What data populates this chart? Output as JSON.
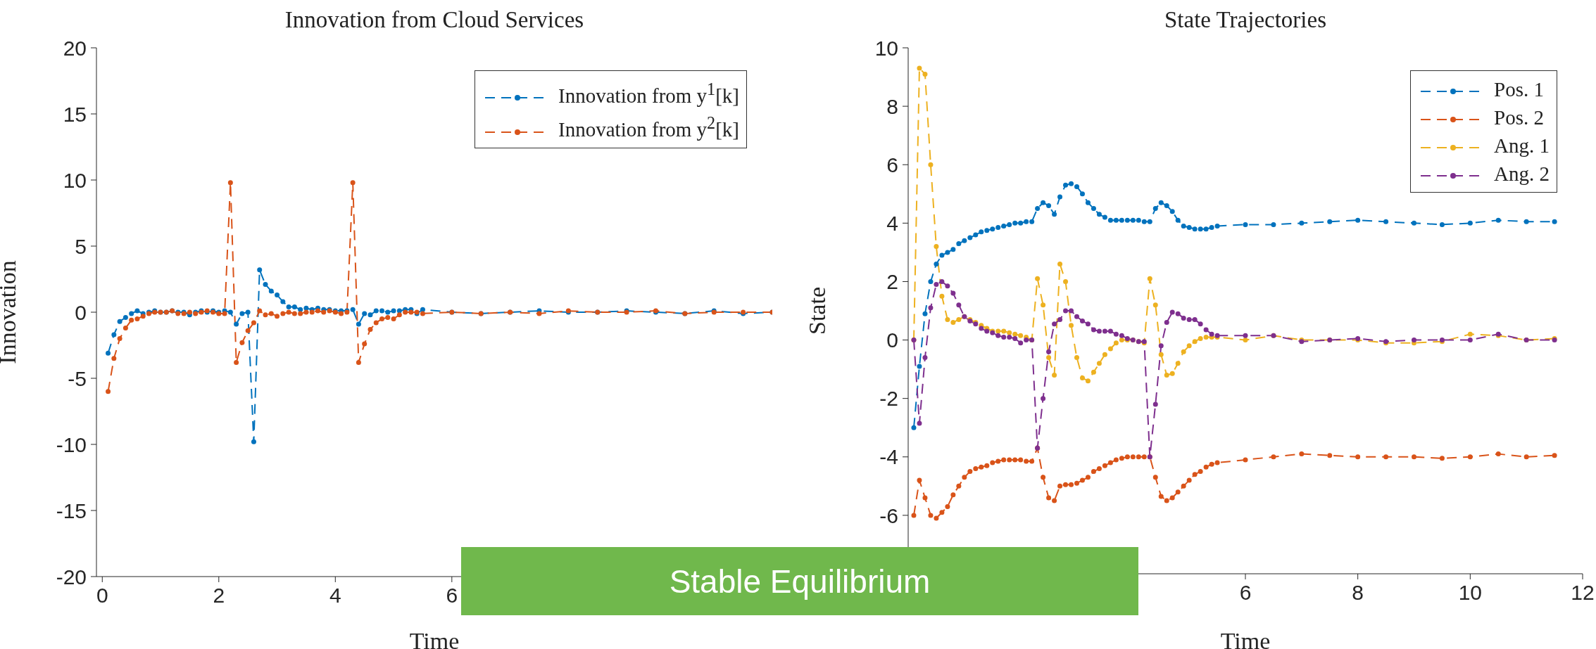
{
  "chart_data": [
    {
      "type": "line",
      "title": "Innovation from Cloud Services",
      "xlabel": "Time",
      "ylabel": "Innovation",
      "legend": "top right",
      "marker": "circle",
      "line_style": "dashed",
      "annotations": [
        "Stable Equilibrium"
      ],
      "x": [
        0.1,
        0.2,
        0.3,
        0.4,
        0.5,
        0.6,
        0.7,
        0.8,
        0.9,
        1.0,
        1.1,
        1.2,
        1.3,
        1.4,
        1.5,
        1.6,
        1.7,
        1.8,
        1.9,
        2.0,
        2.1,
        2.2,
        2.3,
        2.4,
        2.5,
        2.6,
        2.7,
        2.8,
        2.9,
        3.0,
        3.1,
        3.2,
        3.3,
        3.4,
        3.5,
        3.6,
        3.7,
        3.8,
        3.9,
        4.0,
        4.1,
        4.2,
        4.3,
        4.4,
        4.5,
        4.6,
        4.7,
        4.8,
        4.9,
        5.0,
        5.1,
        5.2,
        5.3,
        5.4,
        5.5,
        6,
        6.5,
        7,
        7.5,
        8,
        8.5,
        9,
        9.5,
        10,
        10.5,
        11,
        11.5
      ],
      "series": [
        {
          "name": "Innovation from y$^{1}$[k]",
          "color": "#0072bd",
          "values": [
            -3.1,
            -1.7,
            -0.7,
            -0.4,
            -0.1,
            0.1,
            -0.1,
            0.0,
            0.1,
            0.0,
            0.0,
            0.1,
            0.0,
            0.0,
            -0.2,
            0.0,
            0.1,
            0.0,
            0.1,
            0.0,
            0.1,
            0.0,
            -0.9,
            -0.1,
            0.0,
            -9.8,
            3.2,
            2.1,
            1.6,
            1.3,
            0.8,
            0.4,
            0.4,
            0.2,
            0.3,
            0.2,
            0.3,
            0.2,
            0.2,
            0.1,
            0.1,
            0.1,
            0.2,
            -0.9,
            -0.1,
            -0.2,
            0.1,
            0.1,
            0.0,
            0.1,
            0.1,
            0.2,
            0.2,
            -0.1,
            0.2,
            0.0,
            -0.1,
            0.0,
            0.1,
            0.0,
            0.0,
            0.1,
            0.0,
            -0.1,
            0.1,
            -0.1,
            0.0
          ]
        },
        {
          "name": "Innovation from y$^{2}$[k]",
          "color": "#d95319",
          "values": [
            -6.0,
            -3.5,
            -2.0,
            -1.2,
            -0.6,
            -0.5,
            -0.3,
            -0.1,
            0.0,
            0.0,
            0.0,
            0.1,
            -0.1,
            -0.1,
            0.0,
            -0.1,
            0.0,
            0.1,
            0.0,
            -0.1,
            -0.1,
            9.8,
            -3.8,
            -2.3,
            -1.4,
            -0.8,
            0.1,
            -0.2,
            -0.1,
            -0.3,
            -0.1,
            0.0,
            -0.1,
            -0.1,
            0.0,
            0.0,
            0.1,
            0.0,
            0.1,
            0.0,
            -0.1,
            0.0,
            9.8,
            -3.8,
            -2.4,
            -1.3,
            -0.8,
            -0.5,
            -0.4,
            -0.5,
            -0.2,
            0.0,
            0.0,
            0.0,
            -0.1,
            0.0,
            -0.1,
            0.0,
            -0.1,
            0.1,
            0.0,
            0.0,
            0.1,
            -0.1,
            0.0,
            0.0,
            0.0
          ]
        }
      ],
      "xlim": [
        -0.1,
        11.5
      ],
      "xticks": [
        0,
        2,
        4,
        6
      ],
      "ylim": [
        -20,
        20
      ],
      "yticks": [
        -20,
        -15,
        -10,
        -5,
        0,
        5,
        10,
        15,
        20
      ]
    },
    {
      "type": "line",
      "title": "State Trajectories",
      "xlabel": "Time",
      "ylabel": "State",
      "legend": "top right",
      "marker": "circle",
      "line_style": "dashed",
      "x": [
        0.1,
        0.2,
        0.3,
        0.4,
        0.5,
        0.6,
        0.7,
        0.8,
        0.9,
        1.0,
        1.1,
        1.2,
        1.3,
        1.4,
        1.5,
        1.6,
        1.7,
        1.8,
        1.9,
        2.0,
        2.1,
        2.2,
        2.3,
        2.4,
        2.5,
        2.6,
        2.7,
        2.8,
        2.9,
        3.0,
        3.1,
        3.2,
        3.3,
        3.4,
        3.5,
        3.6,
        3.7,
        3.8,
        3.9,
        4.0,
        4.1,
        4.2,
        4.3,
        4.4,
        4.5,
        4.6,
        4.7,
        4.8,
        4.9,
        5.0,
        5.1,
        5.2,
        5.3,
        5.4,
        5.5,
        6,
        6.5,
        7,
        7.5,
        8,
        8.5,
        9,
        9.5,
        10,
        10.5,
        11,
        11.5
      ],
      "series": [
        {
          "name": "Pos. 1",
          "color": "#0072bd",
          "values": [
            -3.0,
            -0.9,
            0.9,
            2.0,
            2.6,
            2.9,
            3.0,
            3.1,
            3.3,
            3.4,
            3.5,
            3.6,
            3.7,
            3.75,
            3.8,
            3.85,
            3.9,
            3.95,
            4.0,
            4.0,
            4.05,
            4.05,
            4.5,
            4.7,
            4.6,
            4.3,
            4.9,
            5.3,
            5.35,
            5.25,
            5.0,
            4.7,
            4.5,
            4.3,
            4.2,
            4.1,
            4.1,
            4.1,
            4.1,
            4.1,
            4.1,
            4.05,
            4.05,
            4.5,
            4.7,
            4.6,
            4.4,
            4.1,
            3.9,
            3.85,
            3.8,
            3.8,
            3.8,
            3.85,
            3.9,
            3.95,
            3.95,
            4.0,
            4.05,
            4.1,
            4.05,
            4.0,
            3.95,
            4.0,
            4.1,
            4.05,
            4.05
          ]
        },
        {
          "name": "Pos. 2",
          "color": "#d95319",
          "values": [
            -6.0,
            -4.8,
            -5.4,
            -6.0,
            -6.1,
            -5.9,
            -5.7,
            -5.3,
            -5.0,
            -4.7,
            -4.5,
            -4.4,
            -4.35,
            -4.3,
            -4.2,
            -4.15,
            -4.1,
            -4.1,
            -4.1,
            -4.1,
            -4.15,
            -4.15,
            -3.7,
            -4.7,
            -5.4,
            -5.5,
            -5.0,
            -4.95,
            -4.95,
            -4.9,
            -4.8,
            -4.7,
            -4.5,
            -4.4,
            -4.3,
            -4.2,
            -4.1,
            -4.05,
            -4.0,
            -4.0,
            -4.0,
            -4.0,
            -4.0,
            -4.7,
            -5.35,
            -5.5,
            -5.4,
            -5.2,
            -5.0,
            -4.8,
            -4.6,
            -4.5,
            -4.35,
            -4.25,
            -4.2,
            -4.1,
            -4.0,
            -3.9,
            -3.95,
            -4.0,
            -4.0,
            -4.0,
            -4.05,
            -4.0,
            -3.9,
            -4.0,
            -3.95
          ]
        },
        {
          "name": "Ang. 1",
          "color": "#edb120",
          "values": [
            0.0,
            9.3,
            9.1,
            6.0,
            3.2,
            1.5,
            0.7,
            0.6,
            0.7,
            0.8,
            0.7,
            0.6,
            0.5,
            0.4,
            0.3,
            0.3,
            0.3,
            0.25,
            0.2,
            0.15,
            0.1,
            0.0,
            2.1,
            1.2,
            -0.6,
            -1.2,
            2.6,
            2.0,
            0.5,
            -0.6,
            -1.3,
            -1.4,
            -1.1,
            -0.8,
            -0.5,
            -0.3,
            -0.1,
            0.0,
            0.0,
            0.0,
            -0.05,
            -0.1,
            2.1,
            1.2,
            -0.5,
            -1.2,
            -1.15,
            -0.8,
            -0.4,
            -0.2,
            -0.05,
            0.05,
            0.1,
            0.1,
            0.1,
            0.0,
            0.15,
            0.0,
            0.0,
            0.0,
            -0.1,
            -0.1,
            -0.05,
            0.2,
            0.15,
            0.0,
            0.05
          ]
        },
        {
          "name": "Ang. 2",
          "color": "#7e2f8e",
          "values": [
            0.0,
            -2.85,
            -0.6,
            1.1,
            1.9,
            2.0,
            1.85,
            1.6,
            1.2,
            0.8,
            0.65,
            0.55,
            0.4,
            0.3,
            0.25,
            0.15,
            0.1,
            0.1,
            0.05,
            -0.1,
            0.0,
            0.0,
            -3.7,
            -2.0,
            -0.4,
            0.55,
            0.7,
            1.0,
            1.0,
            0.8,
            0.65,
            0.55,
            0.35,
            0.3,
            0.3,
            0.3,
            0.2,
            0.15,
            0.05,
            0.0,
            -0.05,
            -0.05,
            -4.0,
            -2.2,
            -0.2,
            0.6,
            0.95,
            0.9,
            0.75,
            0.7,
            0.7,
            0.55,
            0.35,
            0.2,
            0.15,
            0.15,
            0.15,
            -0.05,
            0.0,
            0.05,
            -0.05,
            0.0,
            0.0,
            0.0,
            0.2,
            0.0,
            0.0
          ]
        }
      ],
      "xlim": [
        0,
        12
      ],
      "xticks": [
        6,
        8,
        10,
        12
      ],
      "ylim": [
        -8,
        10
      ],
      "yticks": [
        -6,
        -4,
        -2,
        0,
        2,
        4,
        6,
        8,
        10
      ]
    }
  ]
}
